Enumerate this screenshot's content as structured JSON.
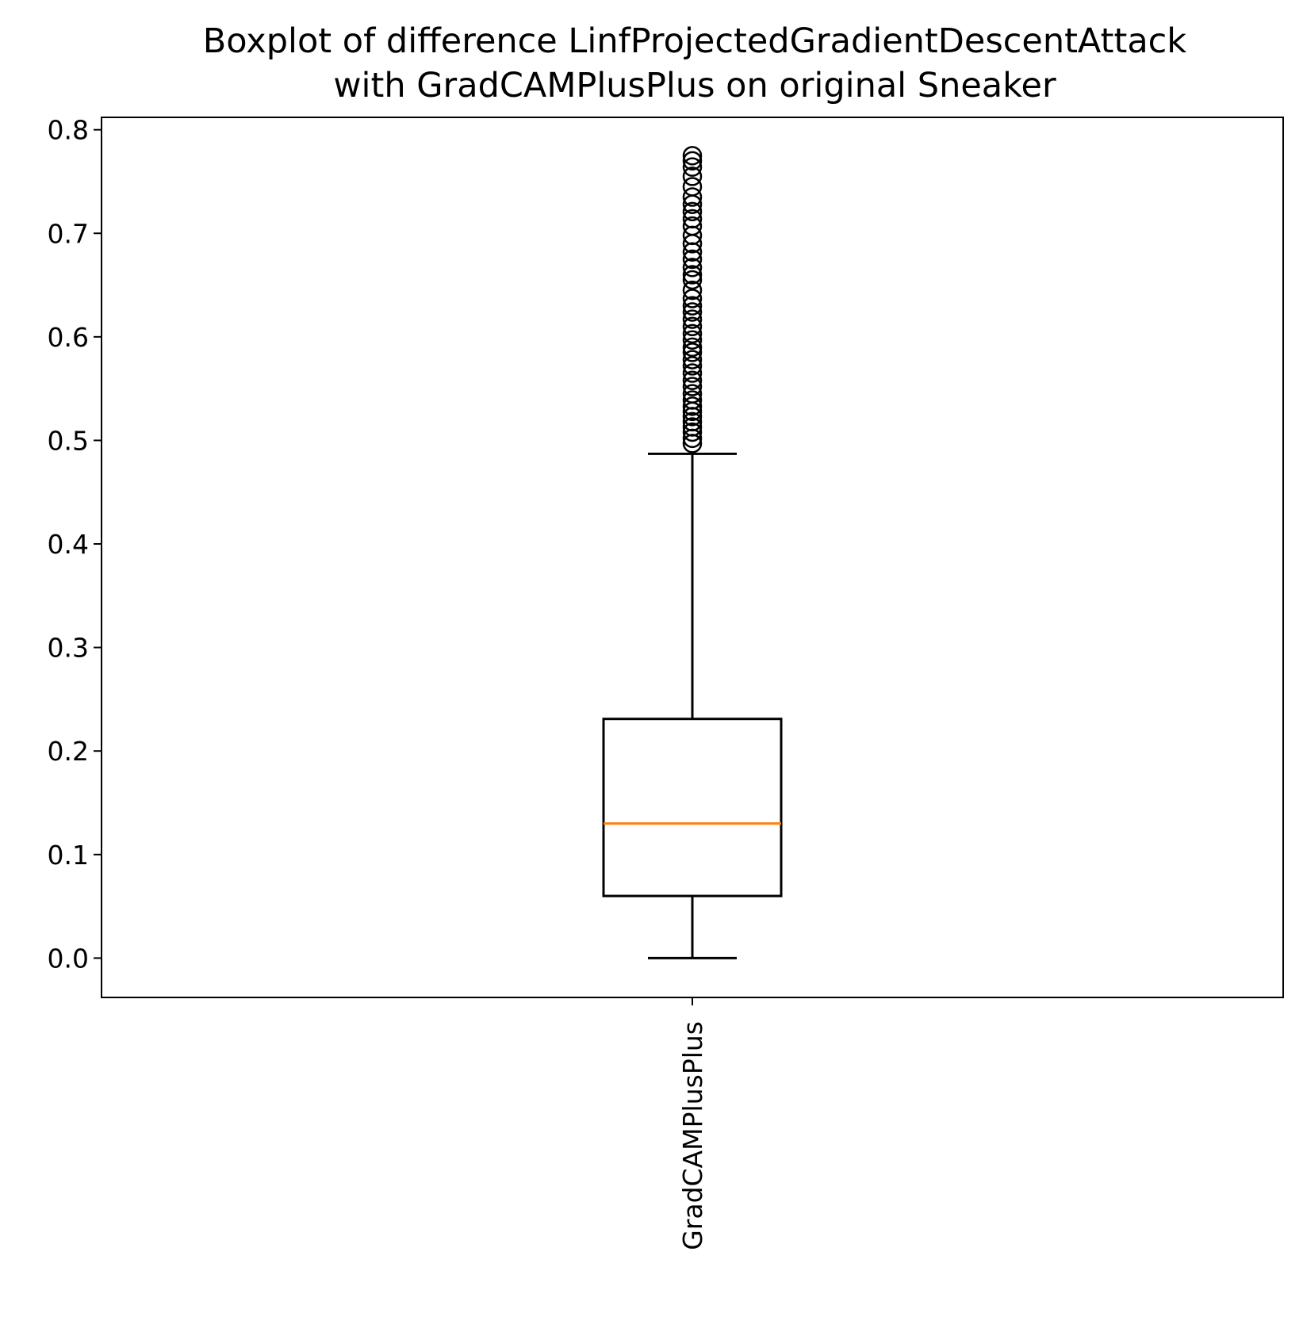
{
  "chart_data": {
    "type": "boxplot",
    "title_lines": [
      "Boxplot of difference LinfProjectedGradientDescentAttack",
      "with GradCAMPlusPlus on original Sneaker"
    ],
    "xlabel": "",
    "ylabel": "",
    "categories": [
      "GradCAMPlusPlus"
    ],
    "ylim": [
      -0.038,
      0.812
    ],
    "yticks": [
      0.0,
      0.1,
      0.2,
      0.3,
      0.4,
      0.5,
      0.6,
      0.7,
      0.8
    ],
    "ytick_labels": [
      "0.0",
      "0.1",
      "0.2",
      "0.3",
      "0.4",
      "0.5",
      "0.6",
      "0.7",
      "0.8"
    ],
    "grid": false,
    "boxes": [
      {
        "category": "GradCAMPlusPlus",
        "whisker_low": 0.0,
        "q1": 0.06,
        "median": 0.13,
        "q3": 0.231,
        "whisker_high": 0.487,
        "outliers": [
          0.497,
          0.502,
          0.508,
          0.513,
          0.518,
          0.523,
          0.528,
          0.533,
          0.539,
          0.545,
          0.552,
          0.558,
          0.565,
          0.572,
          0.578,
          0.585,
          0.59,
          0.597,
          0.603,
          0.61,
          0.617,
          0.624,
          0.63,
          0.637,
          0.645,
          0.655,
          0.66,
          0.667,
          0.675,
          0.682,
          0.69,
          0.698,
          0.707,
          0.714,
          0.721,
          0.728,
          0.735,
          0.745,
          0.755,
          0.764,
          0.77,
          0.775
        ]
      }
    ],
    "colors": {
      "box": "#000000",
      "median": "#ff7f0e",
      "outlier_edge": "#000000"
    }
  }
}
